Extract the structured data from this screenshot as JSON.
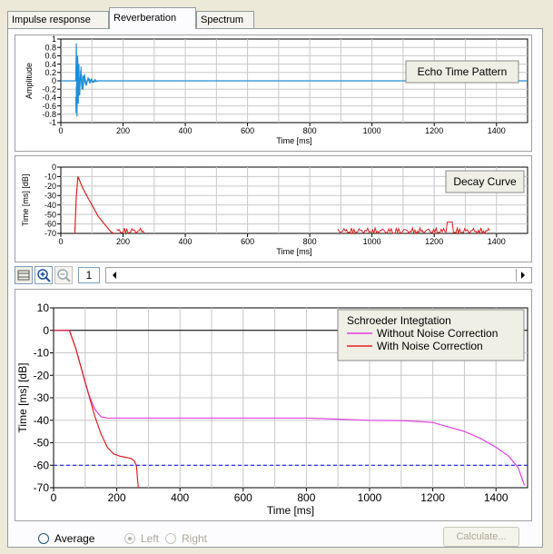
{
  "tabs": [
    {
      "label": "Impulse response",
      "active": false
    },
    {
      "label": "Reverberation",
      "active": true
    },
    {
      "label": "Spectrum",
      "active": false
    }
  ],
  "echo": {
    "title": "Echo Time Pattern",
    "ylabel": "Amplitude",
    "xlabel": "Time [ms]",
    "yticks": [
      "1",
      "0.8",
      "0.6",
      "0.4",
      "0.2",
      "0",
      "-0.2",
      "-0.4",
      "-0.6",
      "-0.8",
      "-1"
    ],
    "xticks": [
      "0",
      "200",
      "400",
      "600",
      "800",
      "1000",
      "1200",
      "1400"
    ]
  },
  "decay": {
    "title": "Decay Curve",
    "ylabel": "Time [ms] [dB]",
    "xlabel": "Time [ms]",
    "yticks": [
      "0",
      "-10",
      "-20",
      "-30",
      "-40",
      "-50",
      "-60",
      "-70"
    ],
    "xticks": [
      "0",
      "200",
      "400",
      "600",
      "800",
      "1000",
      "1200",
      "1400"
    ]
  },
  "toolbar": {
    "zoom_value": "1"
  },
  "schroeder": {
    "legend_title": "Schroeder Integtation",
    "ylabel": "Time [ms] [dB]",
    "xlabel": "Time [ms]",
    "yticks": [
      "10",
      "0",
      "-10",
      "-20",
      "-30",
      "-40",
      "-50",
      "-60",
      "-70"
    ],
    "xticks": [
      "0",
      "200",
      "400",
      "600",
      "800",
      "1000",
      "1200",
      "1400"
    ]
  },
  "chart_data": [
    {
      "type": "line",
      "title": "Echo Time Pattern",
      "xlabel": "Time [ms]",
      "ylabel": "Amplitude",
      "xlim": [
        0,
        1500
      ],
      "ylim": [
        -1,
        1
      ],
      "series": [
        {
          "color": "#1f8fd8",
          "x": [
            0,
            48,
            50,
            52,
            54,
            56,
            58,
            60,
            64,
            68,
            72,
            80,
            90,
            100,
            120,
            1500
          ],
          "y": [
            0,
            0,
            0.9,
            -0.85,
            0.6,
            -0.55,
            0.4,
            -0.35,
            0.25,
            -0.2,
            0.12,
            -0.08,
            0.05,
            -0.03,
            0,
            0
          ]
        }
      ]
    },
    {
      "type": "line",
      "title": "Decay Curve",
      "xlabel": "Time [ms]",
      "ylabel": "Time [ms] [dB]",
      "xlim": [
        0,
        1500
      ],
      "ylim": [
        -70,
        0
      ],
      "series": [
        {
          "color": "#e02020",
          "x": [
            45,
            50,
            55,
            60,
            70,
            80,
            90,
            100,
            110,
            120,
            130,
            140,
            150,
            160,
            170
          ],
          "y": [
            -70,
            -30,
            -10,
            -14,
            -22,
            -28,
            -34,
            -40,
            -46,
            -52,
            -56,
            -60,
            -64,
            -68,
            -70
          ]
        }
      ]
    },
    {
      "type": "line",
      "title": "",
      "legend_title": "Schroeder Integtation",
      "xlabel": "Time [ms]",
      "ylabel": "Time [ms] [dB]",
      "xlim": [
        0,
        1500
      ],
      "ylim": [
        -70,
        10
      ],
      "grid": true,
      "legend": "top-right",
      "series": [
        {
          "name": "Without Noise Correction",
          "color": "#e040e0",
          "x": [
            0,
            50,
            70,
            90,
            110,
            130,
            150,
            170,
            200,
            300,
            400,
            600,
            800,
            900,
            1000,
            1100,
            1150,
            1200,
            1250,
            1300,
            1350,
            1400,
            1440,
            1470,
            1490
          ],
          "y": [
            0,
            0,
            -8,
            -18,
            -28,
            -35,
            -38.5,
            -39,
            -39,
            -39,
            -39,
            -39,
            -39,
            -39.5,
            -40,
            -40.2,
            -40.5,
            -41,
            -43,
            -45,
            -48,
            -52,
            -56,
            -61,
            -69
          ]
        },
        {
          "name": "With Noise Correction",
          "color": "#e02020",
          "x": [
            0,
            50,
            70,
            90,
            110,
            130,
            150,
            170,
            190,
            210,
            230,
            245,
            255,
            262,
            265,
            268
          ],
          "y": [
            0,
            0,
            -8,
            -18,
            -28,
            -38,
            -46,
            -52,
            -55,
            -56,
            -56.5,
            -57,
            -58,
            -60,
            -65,
            -70
          ]
        },
        {
          "name": "",
          "color": "#2020e0",
          "x": [
            0,
            1500
          ],
          "y": [
            -60,
            -60
          ]
        }
      ]
    }
  ],
  "footer": {
    "average_label": "Average",
    "left_label": "Left",
    "right_label": "Right",
    "calculate_label": "Calculate..."
  }
}
